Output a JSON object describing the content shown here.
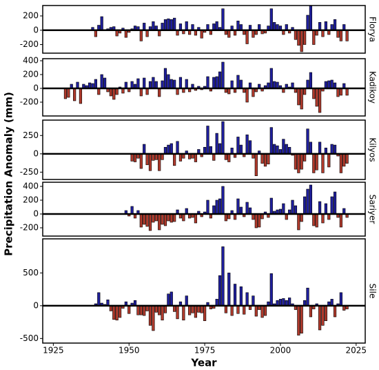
{
  "ylabel": "Precipitation Anomaly (mm)",
  "colors": {
    "positive": "#1f1f9c",
    "negative": "#b03a2c"
  },
  "chart_data": [
    {
      "type": "bar",
      "title": "Florya",
      "xlim": [
        1921.5,
        2028
      ],
      "ylim": [
        -320,
        345
      ],
      "yticks": [
        -200,
        0,
        200
      ],
      "x": [
        1938,
        1939,
        1940,
        1941,
        1942,
        1943,
        1944,
        1945,
        1946,
        1947,
        1948,
        1949,
        1950,
        1951,
        1952,
        1953,
        1954,
        1955,
        1956,
        1957,
        1958,
        1959,
        1960,
        1961,
        1962,
        1963,
        1964,
        1965,
        1966,
        1967,
        1968,
        1969,
        1970,
        1971,
        1972,
        1973,
        1974,
        1975,
        1976,
        1977,
        1978,
        1979,
        1980,
        1981,
        1982,
        1983,
        1984,
        1985,
        1986,
        1987,
        1988,
        1989,
        1990,
        1991,
        1992,
        1993,
        1994,
        1995,
        1996,
        1997,
        1998,
        1999,
        2000,
        2001,
        2002,
        2003,
        2004,
        2005,
        2006,
        2007,
        2008,
        2009,
        2010,
        2011,
        2012,
        2013,
        2014,
        2015,
        2016,
        2017,
        2018,
        2019,
        2020,
        2021,
        2022
      ],
      "values": [
        40,
        -90,
        70,
        190,
        10,
        20,
        40,
        50,
        -80,
        -40,
        30,
        -100,
        -30,
        20,
        60,
        50,
        -150,
        100,
        -90,
        50,
        120,
        60,
        -80,
        100,
        150,
        160,
        150,
        170,
        -70,
        90,
        -50,
        120,
        -60,
        80,
        -70,
        40,
        -110,
        -30,
        80,
        -60,
        90,
        120,
        40,
        300,
        -60,
        -100,
        60,
        -70,
        130,
        80,
        -60,
        -190,
        70,
        -100,
        -60,
        80,
        -50,
        -40,
        60,
        300,
        110,
        80,
        60,
        -60,
        80,
        -40,
        40,
        -130,
        -210,
        -300,
        -200,
        210,
        340,
        -200,
        -70,
        110,
        -90,
        120,
        -60,
        80,
        150,
        -100,
        -150,
        80,
        -150
      ]
    },
    {
      "type": "bar",
      "title": "Kadikoy",
      "xlim": [
        1921.5,
        2028
      ],
      "ylim": [
        -400,
        430
      ],
      "yticks": [
        -200,
        0,
        200,
        400
      ],
      "x": [
        1929,
        1930,
        1931,
        1932,
        1933,
        1934,
        1935,
        1936,
        1937,
        1938,
        1939,
        1940,
        1941,
        1942,
        1943,
        1944,
        1945,
        1946,
        1947,
        1948,
        1949,
        1950,
        1951,
        1952,
        1953,
        1954,
        1955,
        1956,
        1957,
        1958,
        1959,
        1960,
        1961,
        1962,
        1963,
        1964,
        1965,
        1966,
        1967,
        1968,
        1969,
        1970,
        1971,
        1972,
        1973,
        1974,
        1975,
        1976,
        1977,
        1978,
        1979,
        1980,
        1981,
        1982,
        1983,
        1984,
        1985,
        1986,
        1987,
        1988,
        1989,
        1990,
        1991,
        1992,
        1993,
        1994,
        1995,
        1996,
        1997,
        1998,
        1999,
        2000,
        2001,
        2002,
        2003,
        2004,
        2005,
        2006,
        2007,
        2008,
        2009,
        2010,
        2011,
        2012,
        2013,
        2014,
        2015,
        2016,
        2017,
        2018,
        2019,
        2020,
        2021,
        2022
      ],
      "values": [
        -150,
        -130,
        60,
        -180,
        90,
        -220,
        60,
        40,
        80,
        70,
        130,
        -90,
        200,
        150,
        -50,
        -110,
        -160,
        -90,
        20,
        -70,
        90,
        -50,
        100,
        60,
        140,
        -110,
        150,
        -90,
        100,
        160,
        100,
        -120,
        110,
        290,
        200,
        130,
        120,
        -90,
        160,
        -60,
        130,
        -50,
        60,
        -30,
        30,
        -20,
        30,
        170,
        -40,
        160,
        170,
        240,
        380,
        -60,
        -80,
        110,
        -60,
        190,
        120,
        -60,
        -200,
        80,
        -120,
        -50,
        60,
        -40,
        40,
        80,
        290,
        100,
        90,
        40,
        -60,
        60,
        20,
        80,
        -60,
        -240,
        -300,
        -90,
        120,
        230,
        -150,
        -260,
        -350,
        -40,
        100,
        110,
        120,
        80,
        -120,
        -100,
        70,
        -100
      ]
    },
    {
      "type": "bar",
      "title": "Kilyos",
      "xlim": [
        1921.5,
        2028
      ],
      "ylim": [
        -350,
        460
      ],
      "yticks": [
        -250,
        0,
        250
      ],
      "x": [
        1951,
        1952,
        1953,
        1954,
        1955,
        1956,
        1957,
        1958,
        1959,
        1960,
        1961,
        1962,
        1963,
        1964,
        1965,
        1966,
        1967,
        1968,
        1969,
        1970,
        1971,
        1972,
        1973,
        1974,
        1975,
        1976,
        1977,
        1978,
        1979,
        1980,
        1981,
        1982,
        1983,
        1984,
        1985,
        1986,
        1987,
        1988,
        1989,
        1990,
        1991,
        1992,
        1993,
        1994,
        1995,
        1996,
        1997,
        1998,
        1999,
        2000,
        2001,
        2002,
        2003,
        2004,
        2005,
        2006,
        2007,
        2008,
        2009,
        2010,
        2011,
        2012,
        2013,
        2014,
        2015,
        2016,
        2017,
        2018,
        2019,
        2020,
        2021,
        2022
      ],
      "values": [
        -100,
        -110,
        -60,
        -200,
        130,
        -150,
        -230,
        -90,
        -80,
        -230,
        -80,
        90,
        120,
        140,
        -160,
        170,
        -100,
        -60,
        40,
        -70,
        -60,
        -110,
        60,
        -40,
        90,
        380,
        100,
        -90,
        280,
        140,
        440,
        -80,
        -110,
        80,
        -50,
        230,
        120,
        -40,
        260,
        180,
        -60,
        -300,
        40,
        -130,
        -170,
        -140,
        360,
        130,
        110,
        60,
        200,
        130,
        90,
        -20,
        -210,
        -260,
        -210,
        -100,
        340,
        160,
        -260,
        -220,
        160,
        -260,
        80,
        -180,
        130,
        120,
        -30,
        -260,
        -170,
        -130
      ]
    },
    {
      "type": "bar",
      "title": "Sariyer",
      "xlim": [
        1921.5,
        2028
      ],
      "ylim": [
        -320,
        460
      ],
      "yticks": [
        -200,
        0,
        200,
        400
      ],
      "x": [
        1949,
        1950,
        1951,
        1952,
        1953,
        1954,
        1955,
        1956,
        1957,
        1958,
        1959,
        1960,
        1961,
        1962,
        1963,
        1964,
        1965,
        1966,
        1967,
        1968,
        1969,
        1970,
        1971,
        1972,
        1973,
        1974,
        1975,
        1976,
        1977,
        1978,
        1979,
        1980,
        1981,
        1982,
        1983,
        1984,
        1985,
        1986,
        1987,
        1988,
        1989,
        1990,
        1991,
        1992,
        1993,
        1994,
        1995,
        1996,
        1997,
        1998,
        1999,
        2000,
        2001,
        2002,
        2003,
        2004,
        2005,
        2006,
        2007,
        2008,
        2009,
        2010,
        2011,
        2012,
        2013,
        2014,
        2015,
        2016,
        2017,
        2018,
        2019,
        2020,
        2021,
        2022
      ],
      "values": [
        50,
        -30,
        110,
        -60,
        50,
        -190,
        -150,
        -180,
        -240,
        -120,
        -100,
        -230,
        -150,
        -170,
        -100,
        -120,
        -110,
        60,
        -60,
        -100,
        80,
        -60,
        -50,
        -130,
        40,
        -40,
        30,
        200,
        -60,
        120,
        200,
        220,
        400,
        -100,
        -70,
        50,
        -80,
        220,
        100,
        -40,
        170,
        90,
        -80,
        -200,
        -190,
        -70,
        30,
        -50,
        230,
        40,
        60,
        70,
        150,
        -80,
        60,
        200,
        120,
        -230,
        -110,
        250,
        360,
        420,
        -170,
        -190,
        180,
        -130,
        150,
        -80,
        250,
        320,
        -50,
        -190,
        80,
        -50
      ]
    },
    {
      "type": "bar",
      "title": "Sile",
      "xlabel": "Year",
      "xlim": [
        1921.5,
        2028
      ],
      "xticks": [
        1925,
        1950,
        1975,
        2000,
        2025
      ],
      "ylim": [
        -570,
        1020
      ],
      "yticks": [
        -500,
        0,
        500
      ],
      "x": [
        1939,
        1940,
        1941,
        1942,
        1943,
        1944,
        1945,
        1946,
        1947,
        1948,
        1949,
        1950,
        1951,
        1952,
        1953,
        1954,
        1955,
        1956,
        1957,
        1958,
        1959,
        1960,
        1961,
        1962,
        1963,
        1964,
        1965,
        1966,
        1967,
        1968,
        1969,
        1970,
        1971,
        1972,
        1973,
        1974,
        1975,
        1976,
        1977,
        1978,
        1979,
        1980,
        1981,
        1982,
        1983,
        1984,
        1985,
        1986,
        1987,
        1988,
        1989,
        1990,
        1991,
        1992,
        1993,
        1994,
        1995,
        1996,
        1997,
        1998,
        1999,
        2000,
        2001,
        2002,
        2003,
        2004,
        2005,
        2006,
        2007,
        2008,
        2009,
        2010,
        2011,
        2012,
        2013,
        2014,
        2015,
        2016,
        2017,
        2018,
        2019,
        2020,
        2021,
        2022
      ],
      "values": [
        30,
        200,
        40,
        20,
        90,
        -80,
        -210,
        -220,
        -180,
        -40,
        60,
        -120,
        40,
        80,
        -140,
        -140,
        -150,
        -80,
        -300,
        -380,
        -100,
        -140,
        -220,
        -110,
        180,
        210,
        -90,
        -200,
        60,
        -220,
        150,
        -140,
        -110,
        -180,
        -100,
        -110,
        -230,
        50,
        -50,
        -40,
        100,
        460,
        900,
        -110,
        500,
        -150,
        330,
        -120,
        290,
        -130,
        200,
        -60,
        150,
        -160,
        -60,
        -180,
        -150,
        60,
        490,
        30,
        80,
        100,
        110,
        80,
        120,
        30,
        -60,
        -450,
        -420,
        80,
        270,
        -170,
        -50,
        30,
        -370,
        -300,
        -230,
        60,
        100,
        -170,
        30,
        200,
        -70,
        -50
      ]
    }
  ]
}
